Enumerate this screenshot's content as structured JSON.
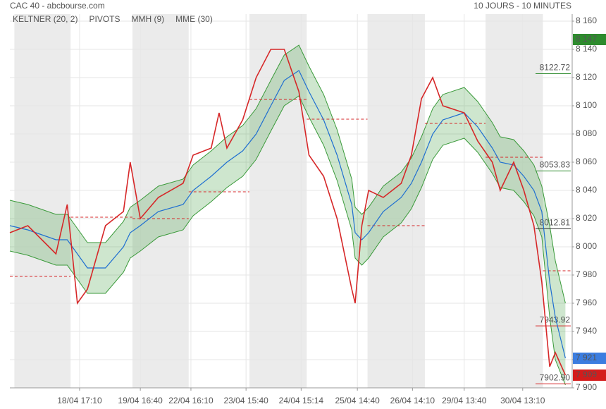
{
  "chart_data": {
    "type": "line",
    "title": "CAC 40 - abcbourse.com",
    "subtitle": "10 JOURS - 10 MINUTES",
    "x": [
      0,
      16,
      41,
      51,
      60,
      69,
      85,
      101,
      107,
      116,
      132,
      154,
      163,
      179,
      186,
      193,
      207,
      219,
      232,
      244,
      257,
      266,
      279,
      291,
      304,
      307,
      313,
      319,
      332,
      348,
      357,
      366,
      376,
      385,
      404,
      416,
      429,
      436,
      448,
      457,
      466,
      473,
      480,
      485,
      494
    ],
    "xlim": [
      0,
      500
    ],
    "xticks": [
      {
        "value": 62,
        "label": "18/04 17:10"
      },
      {
        "value": 116,
        "label": "19/04 16:40"
      },
      {
        "value": 161,
        "label": "22/04 16:10"
      },
      {
        "value": 210,
        "label": "23/04 15:40"
      },
      {
        "value": 259,
        "label": "24/04 15:14"
      },
      {
        "value": 309,
        "label": "25/04 14:40"
      },
      {
        "value": 358,
        "label": "26/04 14:10"
      },
      {
        "value": 404,
        "label": "29/04 13:40"
      },
      {
        "value": 456,
        "label": "30/04 13:10"
      }
    ],
    "ylim": [
      7900,
      8160
    ],
    "yticks": [
      {
        "value": 8160,
        "label": "8 160"
      },
      {
        "value": 8140,
        "label": "8 140"
      },
      {
        "value": 8120,
        "label": "8 120"
      },
      {
        "value": 8100,
        "label": "8 100"
      },
      {
        "value": 8080,
        "label": "8 080"
      },
      {
        "value": 8060,
        "label": "8 060"
      },
      {
        "value": 8040,
        "label": "8 040"
      },
      {
        "value": 8020,
        "label": "8 020"
      },
      {
        "value": 8000,
        "label": "8 000"
      },
      {
        "value": 7980,
        "label": "7 980"
      },
      {
        "value": 7960,
        "label": "7 960"
      },
      {
        "value": 7940,
        "label": "7 940"
      },
      {
        "value": 7920,
        "label": "7 920"
      },
      {
        "value": 7900,
        "label": "7 900"
      }
    ],
    "grid": true,
    "shaded_sessions": [
      [
        4,
        54
      ],
      [
        109,
        159
      ],
      [
        213,
        264
      ],
      [
        318,
        369
      ],
      [
        423,
        474
      ]
    ],
    "series": [
      {
        "name": "KELTNER (20, 2)",
        "color": "#3a9a3a",
        "upper": [
          8033,
          8030,
          8023,
          8023,
          8013,
          8003,
          8003,
          8018,
          8028,
          8033,
          8043,
          8048,
          8058,
          8068,
          8073,
          8078,
          8086,
          8098,
          8118,
          8136,
          8143,
          8128,
          8108,
          8083,
          8048,
          8028,
          8023,
          8028,
          8043,
          8053,
          8063,
          8078,
          8098,
          8108,
          8113,
          8103,
          8088,
          8078,
          8076,
          8068,
          8058,
          8043,
          8015,
          7990,
          7960
        ],
        "lower": [
          7997,
          7994,
          7987,
          7987,
          7977,
          7967,
          7967,
          7982,
          7992,
          7997,
          8007,
          8012,
          8022,
          8032,
          8037,
          8042,
          8050,
          8062,
          8082,
          8100,
          8107,
          8092,
          8072,
          8047,
          8012,
          7992,
          7987,
          7992,
          8007,
          8017,
          8027,
          8042,
          8062,
          8072,
          8077,
          8067,
          8052,
          8042,
          8040,
          8032,
          8022,
          8007,
          7950,
          7920,
          7902
        ]
      },
      {
        "name": "MMH (9)",
        "color": "#d62728",
        "values": [
          8010,
          8015,
          7995,
          8030,
          7960,
          7970,
          8015,
          8025,
          8060,
          8020,
          8035,
          8045,
          8065,
          8070,
          8095,
          8070,
          8090,
          8120,
          8140,
          8140,
          8110,
          8065,
          8050,
          8020,
          7970,
          7960,
          8015,
          8040,
          8035,
          8045,
          8065,
          8105,
          8120,
          8100,
          8095,
          8075,
          8060,
          8040,
          8060,
          8040,
          8015,
          7975,
          7915,
          7925,
          7909
        ]
      },
      {
        "name": "MME (30)",
        "color": "#1f6fd1",
        "values": [
          8015,
          8012,
          8005,
          8005,
          7995,
          7985,
          7985,
          8000,
          8010,
          8015,
          8025,
          8030,
          8040,
          8050,
          8055,
          8060,
          8068,
          8080,
          8100,
          8118,
          8125,
          8110,
          8090,
          8065,
          8030,
          8010,
          8005,
          8010,
          8025,
          8035,
          8045,
          8060,
          8080,
          8090,
          8095,
          8085,
          8070,
          8060,
          8058,
          8050,
          8040,
          8025,
          7975,
          7950,
          7921
        ]
      }
    ],
    "pivots": {
      "name": "PIVOTS",
      "color": "#d62728",
      "segments": [
        [
          0,
          54,
          7979
        ],
        [
          54,
          109,
          8021
        ],
        [
          109,
          159,
          8020
        ],
        [
          159,
          213,
          8039
        ],
        [
          213,
          264,
          8104.5
        ],
        [
          264,
          318,
          8090.5
        ],
        [
          318,
          369,
          8015
        ],
        [
          369,
          423,
          8087.5
        ],
        [
          423,
          474,
          8063.5
        ],
        [
          474,
          500,
          7983
        ]
      ],
      "levels": [
        {
          "value": 8122.72,
          "label": "8122.72",
          "color": "#2e8b2e"
        },
        {
          "value": 8053.83,
          "label": "8053.83",
          "color": "#2e8b2e"
        },
        {
          "value": 8012.81,
          "label": "8012.81",
          "color": "#333333"
        },
        {
          "value": 7943.92,
          "label": "7943.92",
          "color": "#d62728"
        },
        {
          "value": 7902.9,
          "label": "7902.90",
          "color": "#d62728"
        }
      ]
    },
    "price_tags": [
      {
        "value": 8147,
        "label": "8 147",
        "color": "#2e8b2e"
      },
      {
        "value": 7921,
        "label": "7 921",
        "color": "#3b7de0"
      },
      {
        "value": 7909,
        "label": "7 909",
        "color": "#d41c1c"
      }
    ]
  }
}
